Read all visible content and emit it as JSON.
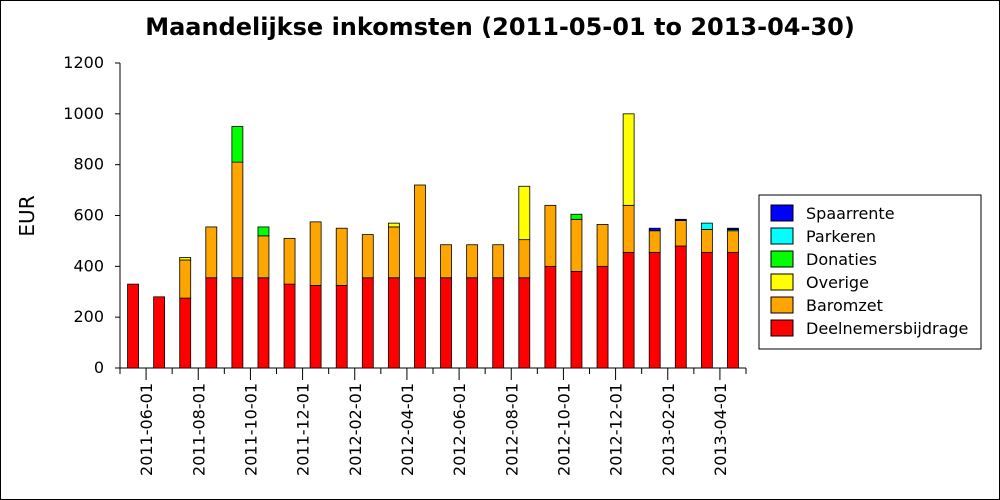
{
  "chart_data": {
    "type": "bar",
    "stacked": true,
    "title": "Maandelijkse inkomsten (2011-05-01 to 2013-04-30)",
    "xlabel": "",
    "ylabel": "EUR",
    "ylim": [
      0,
      1200
    ],
    "yticks": [
      0,
      200,
      400,
      600,
      800,
      1000,
      1200
    ],
    "xtick_labels": [
      "2011-06-01",
      "2011-08-01",
      "2011-10-01",
      "2011-12-01",
      "2012-02-01",
      "2012-04-01",
      "2012-06-01",
      "2012-08-01",
      "2012-10-01",
      "2012-12-01",
      "2013-02-01",
      "2013-04-01"
    ],
    "categories": [
      "2011-05",
      "2011-06",
      "2011-07",
      "2011-08",
      "2011-09",
      "2011-10",
      "2011-11",
      "2011-12",
      "2012-01",
      "2012-02",
      "2012-03",
      "2012-04",
      "2012-05",
      "2012-06",
      "2012-07",
      "2012-08",
      "2012-09",
      "2012-10",
      "2012-11",
      "2012-12",
      "2013-01",
      "2013-02",
      "2013-03",
      "2013-04"
    ],
    "legend_position": "right",
    "grid": false,
    "series": [
      {
        "name": "Deelnemersbijdrage",
        "color": "#ff0000",
        "values": [
          330,
          280,
          275,
          355,
          355,
          355,
          330,
          325,
          325,
          355,
          355,
          355,
          355,
          355,
          355,
          355,
          400,
          380,
          400,
          455,
          455,
          480,
          455,
          455
        ]
      },
      {
        "name": "Baromzet",
        "color": "#ffa500",
        "values": [
          0,
          0,
          150,
          200,
          455,
          165,
          180,
          250,
          225,
          170,
          200,
          365,
          130,
          130,
          130,
          150,
          240,
          205,
          165,
          185,
          85,
          100,
          90,
          85
        ]
      },
      {
        "name": "Overige",
        "color": "#ffff00",
        "values": [
          0,
          0,
          10,
          0,
          0,
          0,
          0,
          0,
          0,
          0,
          15,
          0,
          0,
          0,
          0,
          210,
          0,
          0,
          0,
          360,
          0,
          0,
          0,
          0
        ]
      },
      {
        "name": "Donaties",
        "color": "#00ff00",
        "values": [
          0,
          0,
          0,
          0,
          140,
          35,
          0,
          0,
          0,
          0,
          0,
          0,
          0,
          0,
          0,
          0,
          0,
          20,
          0,
          0,
          0,
          0,
          0,
          0
        ]
      },
      {
        "name": "Parkeren",
        "color": "#00ffff",
        "values": [
          0,
          0,
          0,
          0,
          0,
          0,
          0,
          0,
          0,
          0,
          0,
          0,
          0,
          0,
          0,
          0,
          0,
          0,
          0,
          0,
          0,
          0,
          25,
          5
        ]
      },
      {
        "name": "Spaarrente",
        "color": "#0000ff",
        "values": [
          0,
          0,
          0,
          0,
          0,
          0,
          0,
          0,
          0,
          0,
          0,
          0,
          0,
          0,
          0,
          0,
          0,
          0,
          0,
          0,
          10,
          5,
          0,
          5
        ]
      }
    ]
  }
}
